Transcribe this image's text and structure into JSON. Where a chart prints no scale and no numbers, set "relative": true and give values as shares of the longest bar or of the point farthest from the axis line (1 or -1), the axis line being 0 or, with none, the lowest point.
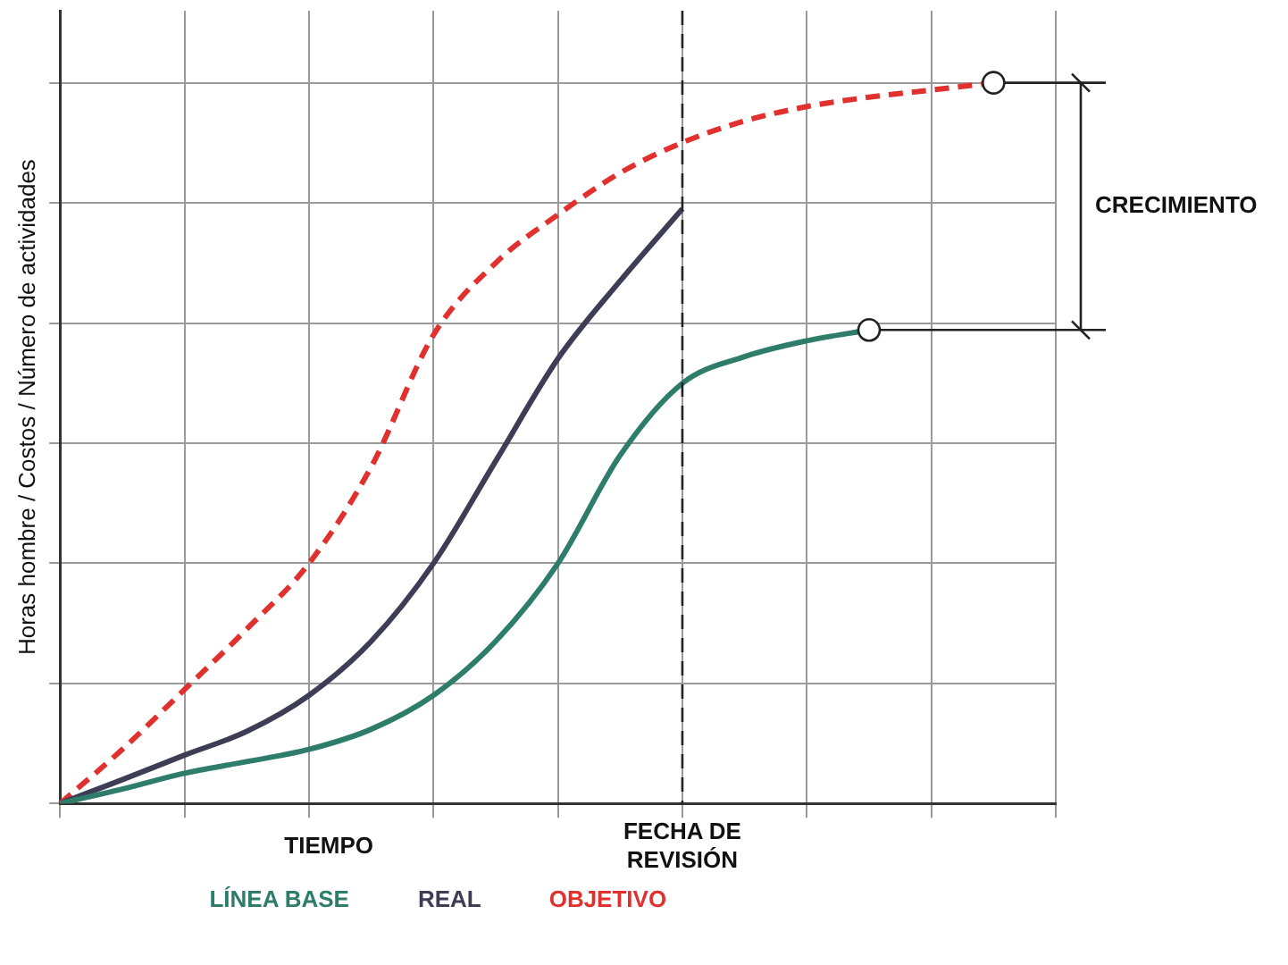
{
  "chart_data": {
    "type": "line",
    "relative": true,
    "xlabel": "TIEMPO",
    "ylabel": "Horas hombre / Costos / Número de actividades",
    "categories": [
      null,
      null,
      null,
      null,
      null,
      null,
      null,
      null,
      null,
      null,
      null,
      null,
      null,
      null,
      null,
      null,
      null
    ],
    "series": [
      {
        "name": "LÍNEA BASE",
        "color": "#2e7d6b",
        "line_style": "solid",
        "values": [
          0,
          0.02,
          0.042,
          0.058,
          0.075,
          0.103,
          0.15,
          0.225,
          0.333,
          0.483,
          0.583,
          0.62,
          0.642,
          0.657,
          null,
          null,
          null
        ]
      },
      {
        "name": "REAL",
        "color": "#3d3d55",
        "line_style": "solid",
        "values": [
          0,
          0.033,
          0.067,
          0.1,
          0.15,
          0.225,
          0.333,
          0.475,
          0.617,
          0.725,
          0.825,
          null,
          null,
          null,
          null,
          null,
          null
        ]
      },
      {
        "name": "OBJETIVO",
        "color": "#e0312f",
        "line_style": "dashed",
        "values": [
          0,
          0.075,
          0.158,
          0.242,
          0.333,
          0.467,
          0.65,
          0.75,
          0.817,
          0.875,
          0.917,
          0.947,
          0.967,
          0.98,
          0.99,
          1,
          null
        ]
      }
    ],
    "annotations": [
      "CRECIMIENTO",
      "FECHA DE REVISIÓN"
    ],
    "grid": true,
    "legend": "bottom"
  }
}
